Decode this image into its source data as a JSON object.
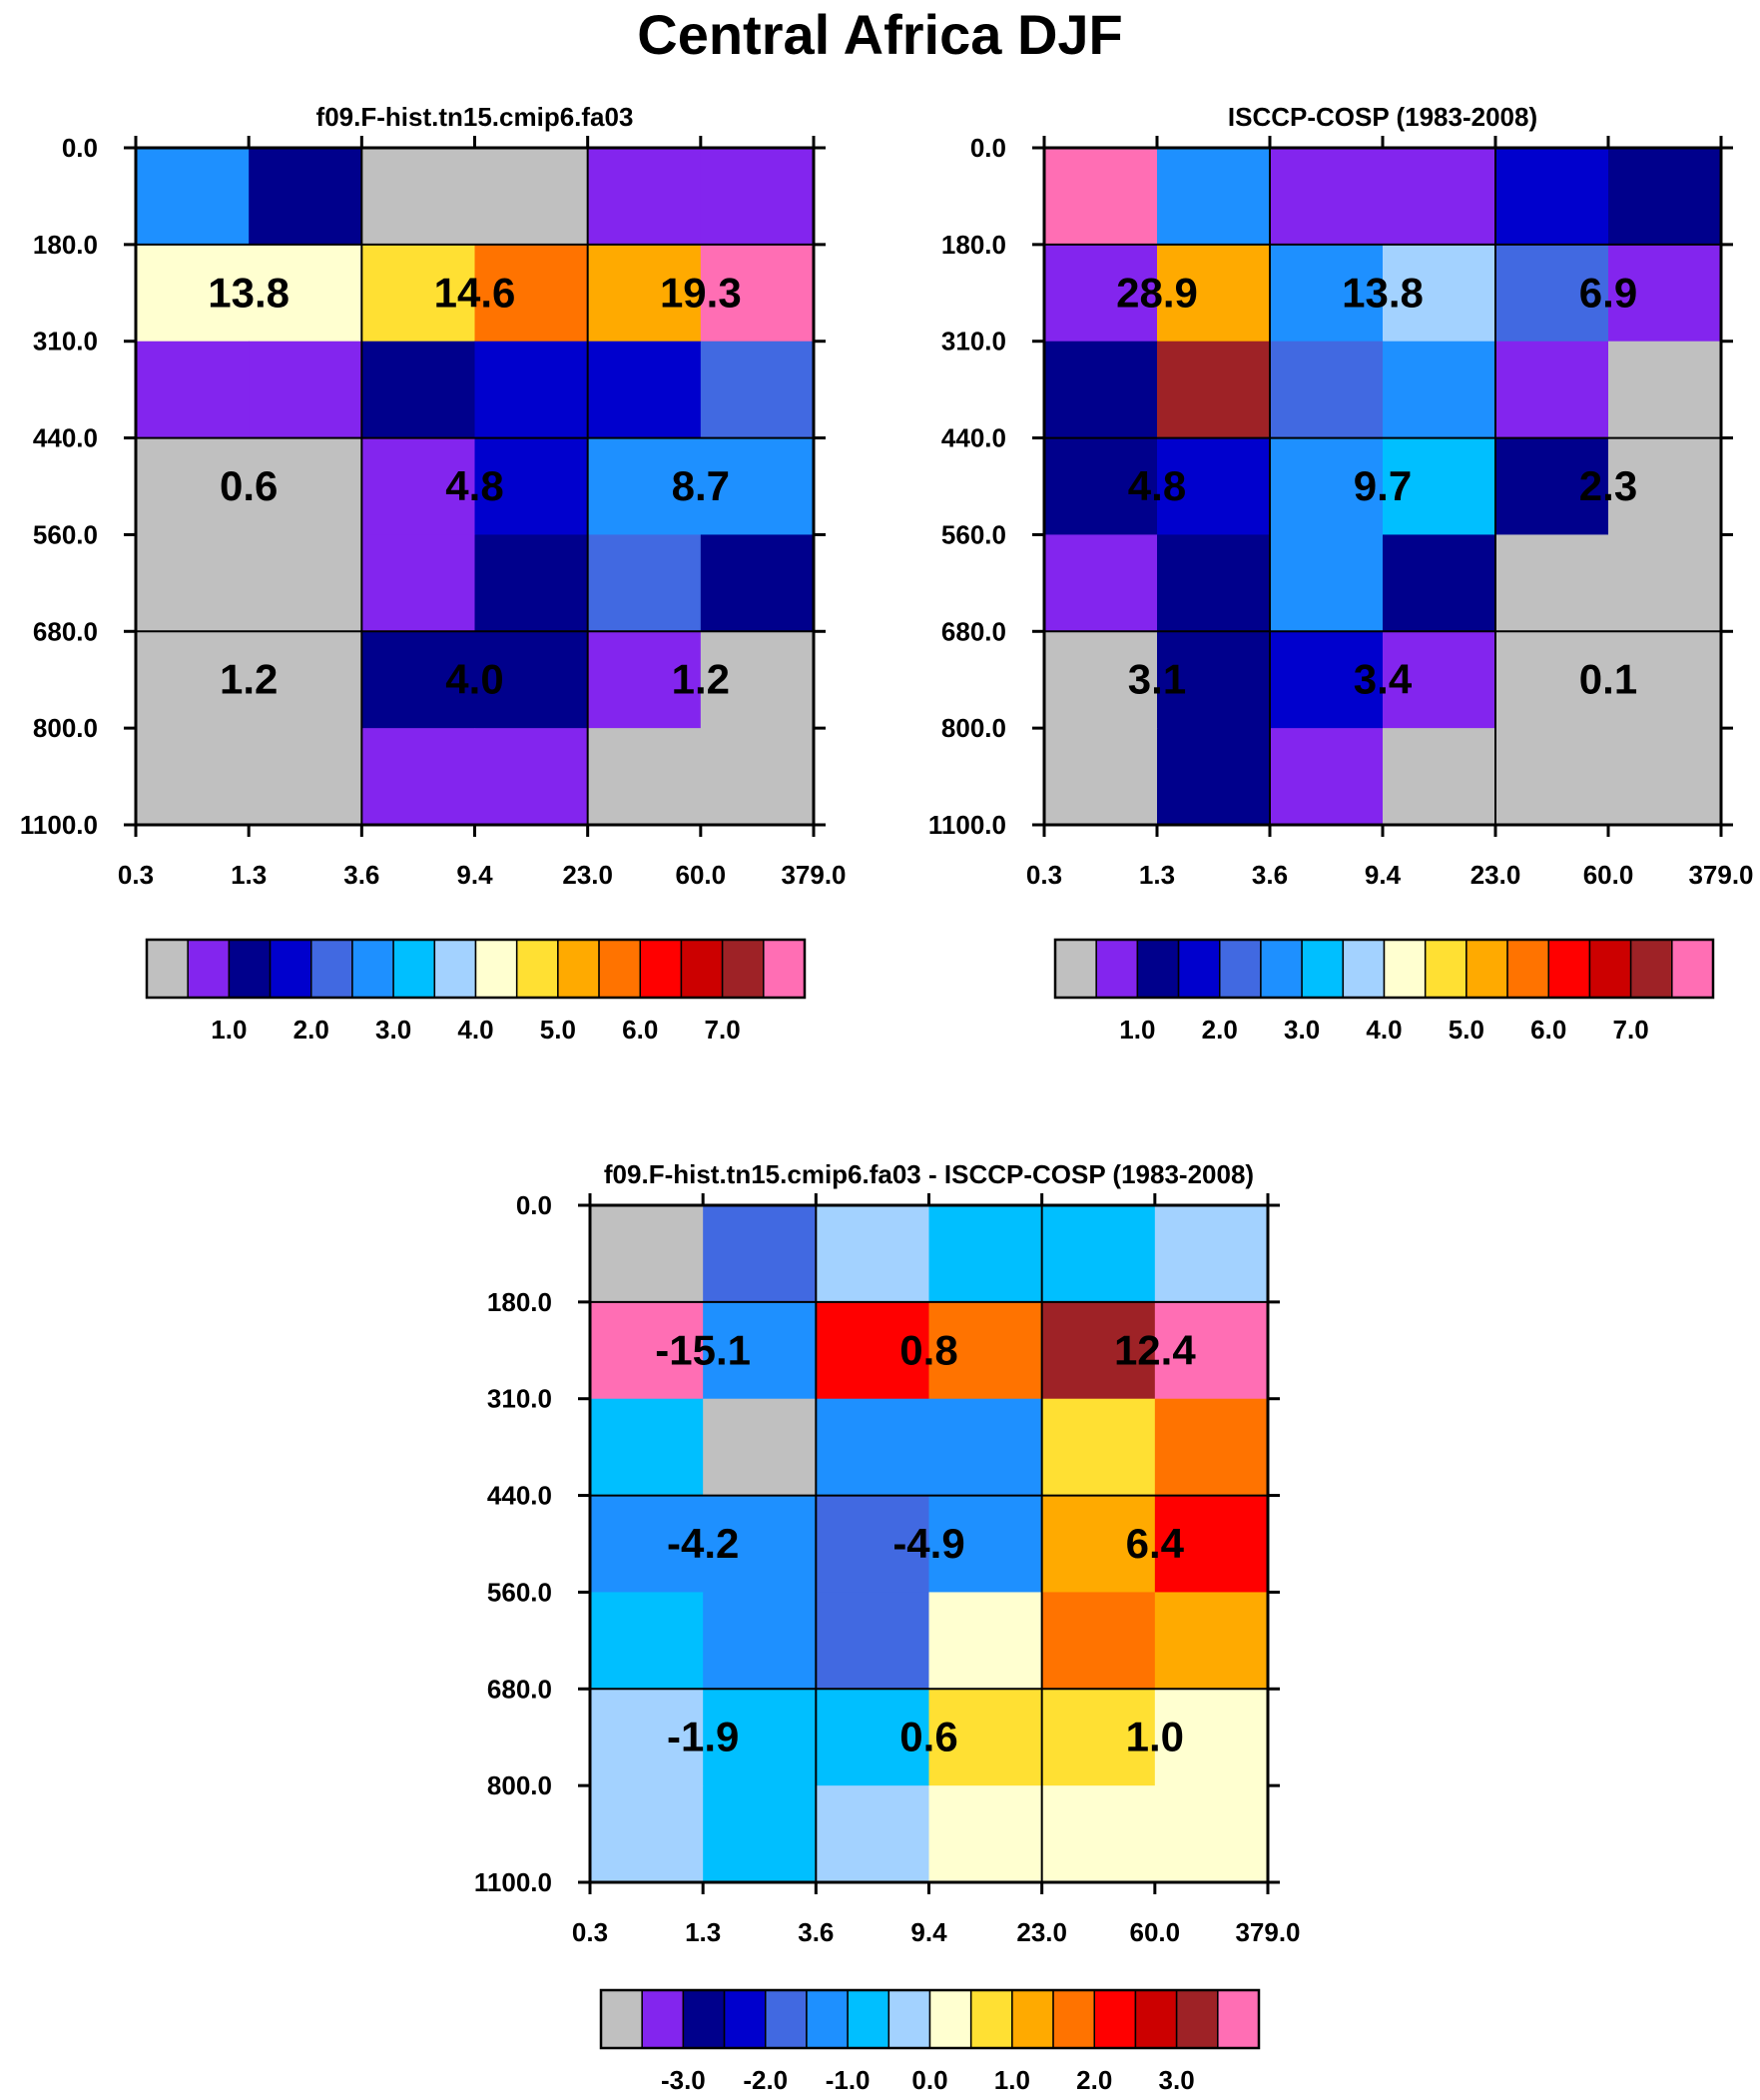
{
  "page_title": "Central Africa DJF",
  "colors": {
    "grey": "#c0c0c0",
    "violet": "#8325ee",
    "navy": "#00008c",
    "blue": "#0000cd",
    "royal": "#4169e1",
    "dodger": "#1e90ff",
    "sky": "#00bfff",
    "pale": "#a3d2ff",
    "cream": "#ffffd0",
    "gold": "#ffe033",
    "orange": "#ffaa00",
    "darkorange": "#ff7300",
    "red": "#ff0000",
    "crimson": "#cc0000",
    "brown": "#9e2226",
    "pink": "#ff6eb4"
  },
  "chart_data": [
    {
      "type": "heatmap",
      "title": "f09.F-hist.tn15.cmip6.fa03",
      "x_ticks": [
        "0.3",
        "1.3",
        "3.6",
        "9.4",
        "23.0",
        "60.0",
        "379.0"
      ],
      "y_ticks": [
        "0.0",
        "180.0",
        "310.0",
        "440.0",
        "560.0",
        "680.0",
        "800.0",
        "1100.0"
      ],
      "cells": [
        [
          "dodger",
          "navy",
          "grey",
          "grey",
          "violet",
          "violet"
        ],
        [
          "cream",
          "cream",
          "gold",
          "darkorange",
          "orange",
          "pink"
        ],
        [
          "violet",
          "violet",
          "navy",
          "blue",
          "blue",
          "royal"
        ],
        [
          "grey",
          "grey",
          "violet",
          "blue",
          "dodger",
          "dodger"
        ],
        [
          "grey",
          "grey",
          "violet",
          "navy",
          "royal",
          "navy"
        ],
        [
          "grey",
          "grey",
          "navy",
          "navy",
          "violet",
          "grey"
        ],
        [
          "grey",
          "grey",
          "violet",
          "violet",
          "grey",
          "grey"
        ]
      ],
      "annotations": [
        {
          "row": 1,
          "col": 0,
          "text": "13.8"
        },
        {
          "row": 1,
          "col": 1,
          "text": "14.6"
        },
        {
          "row": 1,
          "col": 2,
          "text": "19.3"
        },
        {
          "row": 2,
          "col": 0,
          "text": "0.6"
        },
        {
          "row": 2,
          "col": 1,
          "text": "4.8"
        },
        {
          "row": 2,
          "col": 2,
          "text": "8.7"
        },
        {
          "row": 3,
          "col": 0,
          "text": "1.2"
        },
        {
          "row": 3,
          "col": 1,
          "text": "4.0"
        },
        {
          "row": 3,
          "col": 2,
          "text": "1.2"
        }
      ],
      "colorbar": {
        "colors": [
          "grey",
          "violet",
          "navy",
          "blue",
          "royal",
          "dodger",
          "sky",
          "pale",
          "cream",
          "gold",
          "orange",
          "darkorange",
          "red",
          "crimson",
          "brown",
          "pink"
        ],
        "labels": [
          "1.0",
          "2.0",
          "3.0",
          "4.0",
          "5.0",
          "6.0",
          "7.0"
        ],
        "label_start_index": 2,
        "label_step": 2
      }
    },
    {
      "type": "heatmap",
      "title": "ISCCP-COSP (1983-2008)",
      "x_ticks": [
        "0.3",
        "1.3",
        "3.6",
        "9.4",
        "23.0",
        "60.0",
        "379.0"
      ],
      "y_ticks": [
        "0.0",
        "180.0",
        "310.0",
        "440.0",
        "560.0",
        "680.0",
        "800.0",
        "1100.0"
      ],
      "cells": [
        [
          "pink",
          "dodger",
          "violet",
          "violet",
          "blue",
          "navy"
        ],
        [
          "violet",
          "orange",
          "dodger",
          "pale",
          "royal",
          "violet"
        ],
        [
          "navy",
          "brown",
          "royal",
          "dodger",
          "violet",
          "grey"
        ],
        [
          "navy",
          "blue",
          "dodger",
          "sky",
          "navy",
          "grey"
        ],
        [
          "violet",
          "navy",
          "dodger",
          "navy",
          "grey",
          "grey"
        ],
        [
          "grey",
          "navy",
          "blue",
          "violet",
          "grey",
          "grey"
        ],
        [
          "grey",
          "navy",
          "violet",
          "grey",
          "grey",
          "grey"
        ]
      ],
      "annotations": [
        {
          "row": 1,
          "col": 0,
          "text": "28.9"
        },
        {
          "row": 1,
          "col": 1,
          "text": "13.8"
        },
        {
          "row": 1,
          "col": 2,
          "text": "6.9"
        },
        {
          "row": 2,
          "col": 0,
          "text": "4.8"
        },
        {
          "row": 2,
          "col": 1,
          "text": "9.7"
        },
        {
          "row": 2,
          "col": 2,
          "text": "2.3"
        },
        {
          "row": 3,
          "col": 0,
          "text": "3.1"
        },
        {
          "row": 3,
          "col": 1,
          "text": "3.4"
        },
        {
          "row": 3,
          "col": 2,
          "text": "0.1"
        }
      ],
      "colorbar": {
        "colors": [
          "grey",
          "violet",
          "navy",
          "blue",
          "royal",
          "dodger",
          "sky",
          "pale",
          "cream",
          "gold",
          "orange",
          "darkorange",
          "red",
          "crimson",
          "brown",
          "pink"
        ],
        "labels": [
          "1.0",
          "2.0",
          "3.0",
          "4.0",
          "5.0",
          "6.0",
          "7.0"
        ],
        "label_start_index": 2,
        "label_step": 2
      }
    },
    {
      "type": "heatmap",
      "title": "f09.F-hist.tn15.cmip6.fa03 - ISCCP-COSP (1983-2008)",
      "x_ticks": [
        "0.3",
        "1.3",
        "3.6",
        "9.4",
        "23.0",
        "60.0",
        "379.0"
      ],
      "y_ticks": [
        "0.0",
        "180.0",
        "310.0",
        "440.0",
        "560.0",
        "680.0",
        "800.0",
        "1100.0"
      ],
      "cells": [
        [
          "grey",
          "royal",
          "pale",
          "sky",
          "sky",
          "pale"
        ],
        [
          "pink",
          "dodger",
          "red",
          "darkorange",
          "brown",
          "pink"
        ],
        [
          "sky",
          "grey",
          "dodger",
          "dodger",
          "gold",
          "darkorange"
        ],
        [
          "dodger",
          "dodger",
          "royal",
          "dodger",
          "orange",
          "red"
        ],
        [
          "sky",
          "dodger",
          "royal",
          "cream",
          "darkorange",
          "orange"
        ],
        [
          "pale",
          "sky",
          "sky",
          "gold",
          "gold",
          "cream"
        ],
        [
          "pale",
          "sky",
          "pale",
          "cream",
          "cream",
          "cream"
        ]
      ],
      "annotations": [
        {
          "row": 1,
          "col": 0,
          "text": "-15.1"
        },
        {
          "row": 1,
          "col": 1,
          "text": "0.8"
        },
        {
          "row": 1,
          "col": 2,
          "text": "12.4"
        },
        {
          "row": 2,
          "col": 0,
          "text": "-4.2"
        },
        {
          "row": 2,
          "col": 1,
          "text": "-4.9"
        },
        {
          "row": 2,
          "col": 2,
          "text": "6.4"
        },
        {
          "row": 3,
          "col": 0,
          "text": "-1.9"
        },
        {
          "row": 3,
          "col": 1,
          "text": "0.6"
        },
        {
          "row": 3,
          "col": 2,
          "text": "1.0"
        }
      ],
      "colorbar": {
        "colors": [
          "grey",
          "violet",
          "navy",
          "blue",
          "royal",
          "dodger",
          "sky",
          "pale",
          "cream",
          "gold",
          "orange",
          "darkorange",
          "red",
          "crimson",
          "brown",
          "pink"
        ],
        "labels": [
          "-3.0",
          "-2.0",
          "-1.0",
          "0.0",
          "1.0",
          "2.0",
          "3.0"
        ],
        "label_start_index": 2,
        "label_step": 2
      }
    }
  ]
}
